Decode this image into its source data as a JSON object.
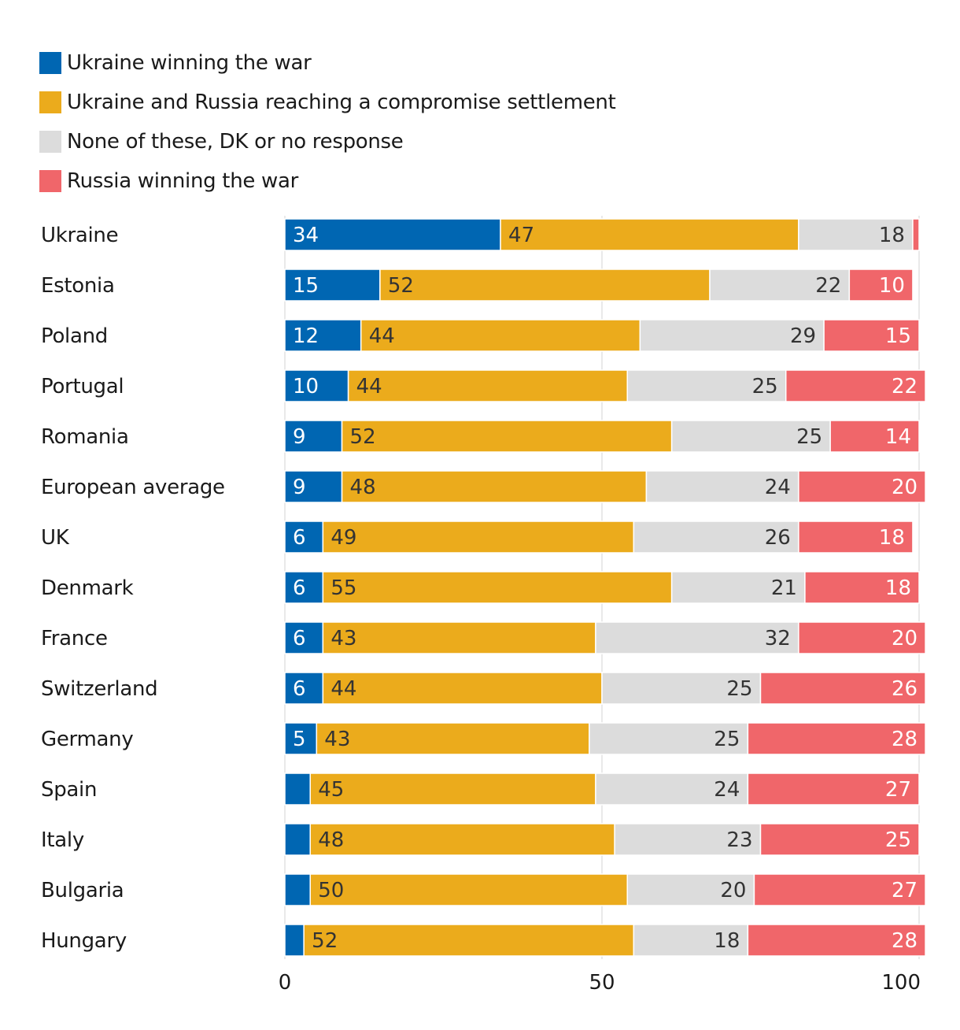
{
  "chart_data": {
    "type": "bar",
    "orientation": "horizontal",
    "stacked": true,
    "categories": [
      "Ukraine",
      "Estonia",
      "Poland",
      "Portugal",
      "Romania",
      "European average",
      "UK",
      "Denmark",
      "France",
      "Switzerland",
      "Germany",
      "Spain",
      "Italy",
      "Bulgaria",
      "Hungary"
    ],
    "series": [
      {
        "name": "Ukraine winning the war",
        "color": "#0066b2",
        "label_color": "#ffffff",
        "label_align": "left",
        "values": [
          34,
          15,
          12,
          10,
          9,
          9,
          6,
          6,
          6,
          6,
          5,
          4,
          4,
          4,
          3
        ],
        "labels": [
          "34",
          "15",
          "12",
          "10",
          "9",
          "9",
          "6",
          "6",
          "6",
          "6",
          "5",
          "",
          "",
          "",
          ""
        ]
      },
      {
        "name": "Ukraine and Russia reaching a compromise settlement",
        "color": "#ebab1c",
        "label_color": "#333333",
        "label_align": "left",
        "values": [
          47,
          52,
          44,
          44,
          52,
          48,
          49,
          55,
          43,
          44,
          43,
          45,
          48,
          50,
          52
        ],
        "labels": [
          "47",
          "52",
          "44",
          "44",
          "52",
          "48",
          "49",
          "55",
          "43",
          "44",
          "43",
          "45",
          "48",
          "50",
          "52"
        ]
      },
      {
        "name": "None of these, DK or no response",
        "color": "#dcdcdc",
        "label_color": "#333333",
        "label_align": "right",
        "values": [
          18,
          22,
          29,
          25,
          25,
          24,
          26,
          21,
          32,
          25,
          25,
          24,
          23,
          20,
          18
        ],
        "labels": [
          "18",
          "22",
          "29",
          "25",
          "25",
          "24",
          "26",
          "21",
          "32",
          "25",
          "25",
          "24",
          "23",
          "20",
          "18"
        ]
      },
      {
        "name": "Russia winning the war",
        "color": "#f0666a",
        "label_color": "#ffffff",
        "label_align": "right",
        "values": [
          1,
          10,
          15,
          22,
          14,
          20,
          18,
          18,
          20,
          26,
          28,
          27,
          25,
          27,
          28
        ],
        "labels": [
          "",
          "10",
          "15",
          "22",
          "14",
          "20",
          "18",
          "18",
          "20",
          "26",
          "28",
          "27",
          "25",
          "27",
          "28"
        ]
      }
    ],
    "xlim": [
      0,
      100
    ],
    "xticks": [
      0,
      50,
      100
    ],
    "xtick_labels": [
      "0",
      "50",
      "100"
    ],
    "legend_position": "top-left",
    "grid": true
  }
}
